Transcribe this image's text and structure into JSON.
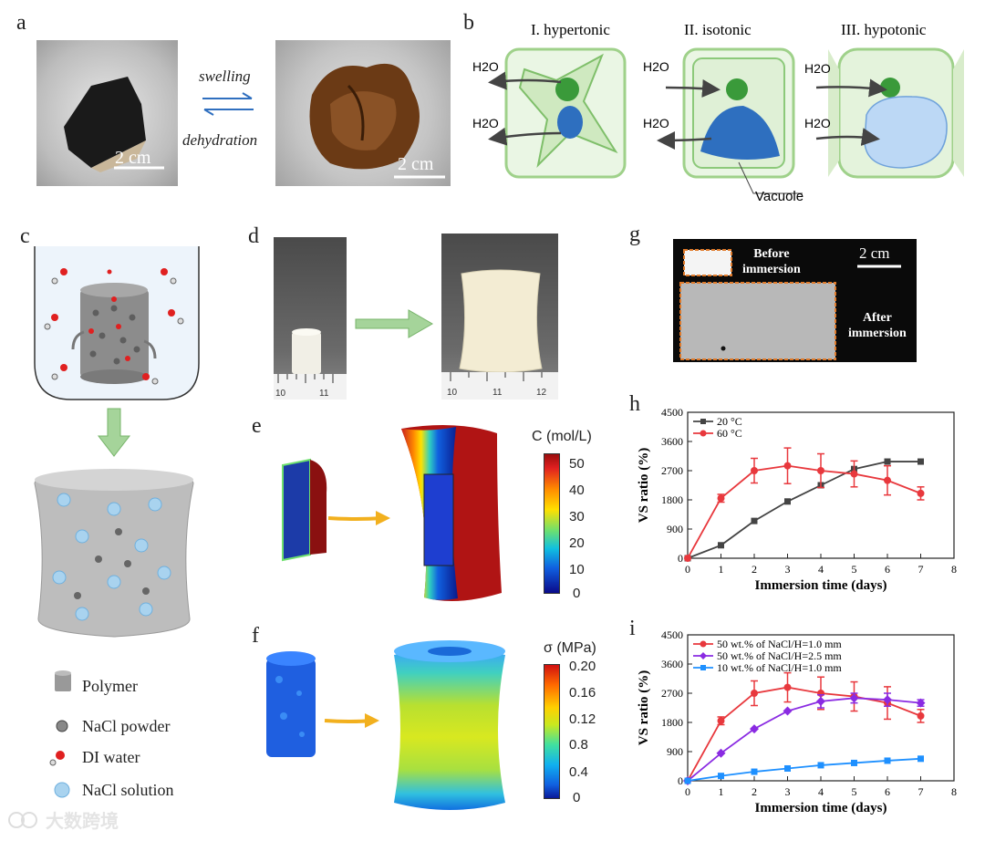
{
  "panels": {
    "a": {
      "label": "a",
      "arrow_top": "swelling",
      "arrow_bottom": "dehydration",
      "scale_left": "2 cm",
      "scale_right": "2 cm"
    },
    "b": {
      "label": "b",
      "titles": [
        "I. hypertonic",
        "II. isotonic",
        "III. hypotonic"
      ],
      "water": "H2O",
      "vacuole": "Vacuole"
    },
    "c": {
      "label": "c",
      "legend": [
        "Polymer",
        "NaCl powder",
        "DI water",
        "NaCl solution"
      ]
    },
    "d": {
      "label": "d",
      "ruler_left": [
        "10",
        "11"
      ],
      "ruler_right": [
        "10",
        "11",
        "12"
      ]
    },
    "e": {
      "label": "e",
      "colorbar_title": "C (mol/L)",
      "ticks": [
        "50",
        "40",
        "30",
        "20",
        "10",
        "0"
      ]
    },
    "f": {
      "label": "f",
      "colorbar_title": "σ (MPa)",
      "ticks": [
        "0.20",
        "0.16",
        "0.12",
        "0.8",
        "0.4",
        "0"
      ]
    },
    "g": {
      "label": "g",
      "before": [
        "Before",
        "immersion"
      ],
      "after": [
        "After",
        "immersion"
      ],
      "scale": "2 cm"
    },
    "h": {
      "label": "h"
    },
    "i": {
      "label": "i"
    }
  },
  "watermark": "大数跨境",
  "colors": {
    "red": "#e8383d",
    "dark": "#444444",
    "purple": "#8a2be2",
    "blue": "#1e90ff",
    "orange": "#e07a2a"
  },
  "chart_data": [
    {
      "id": "h",
      "type": "line",
      "xlabel": "Immersion time (days)",
      "ylabel": "VS ratio (%)",
      "xlim": [
        0,
        8
      ],
      "ylim": [
        0,
        4500
      ],
      "xticks": [
        0,
        1,
        2,
        3,
        4,
        5,
        6,
        7,
        8
      ],
      "yticks": [
        0,
        900,
        1800,
        2700,
        3600,
        4500
      ],
      "legend_position": "top-left",
      "series": [
        {
          "name": "20 °C",
          "color": "#444444",
          "marker": "square",
          "x": [
            0,
            1,
            2,
            3,
            4,
            5,
            6,
            7
          ],
          "y": [
            0,
            400,
            1150,
            1750,
            2250,
            2750,
            2980,
            2980
          ],
          "err": [
            0,
            0,
            0,
            0,
            0,
            0,
            0,
            0
          ]
        },
        {
          "name": "60 °C",
          "color": "#e8383d",
          "marker": "circle",
          "x": [
            0,
            1,
            2,
            3,
            4,
            5,
            6,
            7
          ],
          "y": [
            0,
            1850,
            2700,
            2850,
            2700,
            2600,
            2400,
            2000
          ],
          "err": [
            0,
            120,
            380,
            550,
            520,
            400,
            450,
            200
          ]
        }
      ]
    },
    {
      "id": "i",
      "type": "line",
      "xlabel": "Immersion time (days)",
      "ylabel": "VS ratio (%)",
      "xlim": [
        0,
        8
      ],
      "ylim": [
        0,
        4500
      ],
      "xticks": [
        0,
        1,
        2,
        3,
        4,
        5,
        6,
        7,
        8
      ],
      "yticks": [
        0,
        900,
        1800,
        2700,
        3600,
        4500
      ],
      "legend_position": "top-left",
      "series": [
        {
          "name": "50 wt.% of NaCl/H=1.0 mm",
          "color": "#e8383d",
          "marker": "circle",
          "x": [
            0,
            1,
            2,
            3,
            4,
            5,
            6,
            7
          ],
          "y": [
            0,
            1850,
            2700,
            2880,
            2700,
            2600,
            2400,
            2000
          ],
          "err": [
            0,
            120,
            380,
            450,
            500,
            450,
            500,
            200
          ]
        },
        {
          "name": "50 wt.% of NaCl/H=2.5 mm",
          "color": "#8a2be2",
          "marker": "diamond",
          "x": [
            0,
            1,
            2,
            3,
            4,
            5,
            6,
            7
          ],
          "y": [
            0,
            850,
            1600,
            2150,
            2450,
            2550,
            2500,
            2400
          ],
          "err": [
            0,
            0,
            0,
            0,
            200,
            150,
            200,
            100
          ]
        },
        {
          "name": "10 wt.% of NaCl/H=1.0 mm",
          "color": "#1e90ff",
          "marker": "square",
          "x": [
            0,
            1,
            2,
            3,
            4,
            5,
            6,
            7
          ],
          "y": [
            0,
            150,
            280,
            380,
            480,
            550,
            620,
            680
          ],
          "err": [
            0,
            0,
            0,
            0,
            0,
            0,
            0,
            0
          ]
        }
      ]
    }
  ]
}
